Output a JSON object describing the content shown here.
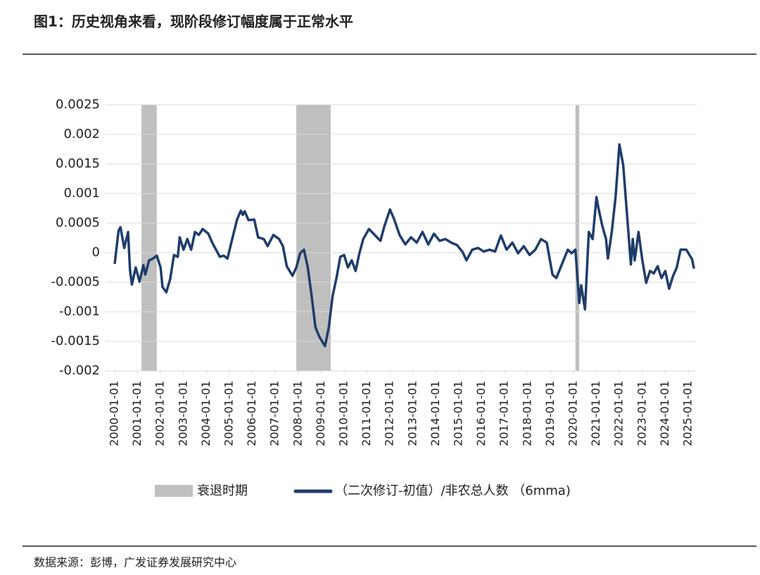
{
  "chart_data": {
    "type": "line",
    "title": "图1：历史视角来看，现阶段修订幅度属于正常水平",
    "source": "数据来源：彭博，广发证券发展研究中心",
    "x": [
      "2000-01-01",
      "2000-03-01",
      "2000-04-01",
      "2000-06-01",
      "2000-08-01",
      "2000-09-01",
      "2000-10-01",
      "2000-12-01",
      "2001-02-01",
      "2001-04-01",
      "2001-05-01",
      "2001-07-01",
      "2001-09-01",
      "2001-11-01",
      "2002-01-01",
      "2002-02-01",
      "2002-04-01",
      "2002-06-01",
      "2002-08-01",
      "2002-10-01",
      "2002-11-01",
      "2003-01-01",
      "2003-03-01",
      "2003-05-01",
      "2003-07-01",
      "2003-09-01",
      "2003-11-01",
      "2004-02-01",
      "2004-04-01",
      "2004-06-01",
      "2004-08-01",
      "2004-10-01",
      "2004-12-01",
      "2005-02-01",
      "2005-05-01",
      "2005-07-01",
      "2005-08-01",
      "2005-09-01",
      "2005-11-01",
      "2006-02-01",
      "2006-04-01",
      "2006-07-01",
      "2006-09-01",
      "2006-12-01",
      "2007-03-01",
      "2007-05-01",
      "2007-07-01",
      "2007-10-01",
      "2007-12-01",
      "2008-02-01",
      "2008-04-01",
      "2008-06-01",
      "2008-08-01",
      "2008-10-01",
      "2008-12-01",
      "2009-03-01",
      "2009-05-01",
      "2009-07-01",
      "2009-09-01",
      "2009-11-01",
      "2010-01-01",
      "2010-03-01",
      "2010-05-01",
      "2010-07-01",
      "2010-09-01",
      "2010-11-01",
      "2011-02-01",
      "2011-05-01",
      "2011-08-01",
      "2011-10-01",
      "2012-01-01",
      "2012-03-01",
      "2012-06-01",
      "2012-09-01",
      "2012-12-01",
      "2013-03-01",
      "2013-06-01",
      "2013-09-01",
      "2013-12-01",
      "2014-03-01",
      "2014-06-01",
      "2014-09-01",
      "2014-12-01",
      "2015-03-01",
      "2015-05-01",
      "2015-08-01",
      "2015-11-01",
      "2016-02-01",
      "2016-05-01",
      "2016-08-01",
      "2016-11-01",
      "2017-02-01",
      "2017-05-01",
      "2017-08-01",
      "2017-11-01",
      "2018-02-01",
      "2018-05-01",
      "2018-08-01",
      "2018-11-01",
      "2019-02-01",
      "2019-04-01",
      "2019-07-01",
      "2019-10-01",
      "2019-12-01",
      "2020-02-01",
      "2020-04-01",
      "2020-05-01",
      "2020-07-01",
      "2020-09-01",
      "2020-11-01",
      "2021-01-01",
      "2021-02-01",
      "2021-04-01",
      "2021-06-01",
      "2021-07-01",
      "2021-09-01",
      "2021-11-01",
      "2022-01-01",
      "2022-03-01",
      "2022-05-01",
      "2022-07-01",
      "2022-08-01",
      "2022-09-01",
      "2022-11-01",
      "2023-01-01",
      "2023-03-01",
      "2023-05-01",
      "2023-07-01",
      "2023-09-01",
      "2023-11-01",
      "2024-01-01",
      "2024-03-01",
      "2024-05-01",
      "2024-07-01",
      "2024-09-01",
      "2024-12-01",
      "2025-03-01",
      "2025-04-01"
    ],
    "series": [
      {
        "name": "（二次修订-初值）/非农总人数 （6mma)",
        "color": "#1f3d6b",
        "values": [
          -0.00019,
          0.00037,
          0.00043,
          8e-05,
          0.00035,
          -0.00029,
          -0.00054,
          -0.00025,
          -0.00049,
          -0.00021,
          -0.00037,
          -0.00013,
          -0.0001,
          -5e-05,
          -0.00025,
          -0.00058,
          -0.00067,
          -0.00045,
          -4e-05,
          -7e-05,
          0.00026,
          5e-05,
          0.00023,
          5e-05,
          0.00035,
          0.0003,
          0.0004,
          0.00032,
          0.00017,
          5e-05,
          -7e-05,
          -5e-05,
          -0.0001,
          0.00017,
          0.00056,
          0.00071,
          0.00064,
          0.0007,
          0.00055,
          0.00056,
          0.00026,
          0.00023,
          0.00011,
          0.0003,
          0.00023,
          0.00011,
          -0.00023,
          -0.00039,
          -0.00025,
          -1e-05,
          5e-05,
          -0.00025,
          -0.00073,
          -0.00126,
          -0.00142,
          -0.00158,
          -0.00126,
          -0.00073,
          -0.00043,
          -7e-05,
          -4e-05,
          -0.00025,
          -0.00013,
          -0.00031,
          -1e-05,
          0.00023,
          0.0004,
          0.0003,
          0.0002,
          0.00044,
          0.00073,
          0.00058,
          0.0003,
          0.00014,
          0.00026,
          0.00017,
          0.00035,
          0.00014,
          0.00032,
          0.0002,
          0.00023,
          0.00017,
          0.00013,
          1e-05,
          -0.00013,
          5e-05,
          8e-05,
          2e-05,
          5e-05,
          2e-05,
          0.00029,
          5e-05,
          0.00017,
          -1e-05,
          0.00011,
          -4e-05,
          5e-05,
          0.00023,
          0.00017,
          -0.00037,
          -0.00043,
          -0.00019,
          5e-05,
          -1e-05,
          5e-05,
          -0.00085,
          -0.00055,
          -0.00096,
          0.00035,
          0.00023,
          0.00094,
          0.00076,
          0.00046,
          0.00023,
          -0.0001,
          0.00035,
          0.00094,
          0.00183,
          0.00148,
          0.00064,
          -0.0002,
          0.00023,
          -0.00013,
          0.00035,
          -0.00013,
          -0.00051,
          -0.00031,
          -0.00035,
          -0.00023,
          -0.00043,
          -0.00031,
          -0.00061,
          -0.0004,
          -0.00025,
          5e-05,
          5e-05,
          -0.00011,
          -0.00027
        ]
      }
    ],
    "recessions": {
      "name": "衰退时期",
      "color": "#bfbfbf",
      "periods": [
        [
          "2001-03-01",
          "2001-11-01"
        ],
        [
          "2007-12-01",
          "2009-06-01"
        ],
        [
          "2020-02-01",
          "2020-04-01"
        ]
      ]
    },
    "xticks": [
      "2000-01-01",
      "2001-01-01",
      "2002-01-01",
      "2003-01-01",
      "2004-01-01",
      "2005-01-01",
      "2006-01-01",
      "2007-01-01",
      "2008-01-01",
      "2009-01-01",
      "2010-01-01",
      "2011-01-01",
      "2012-01-01",
      "2013-01-01",
      "2014-01-01",
      "2015-01-01",
      "2016-01-01",
      "2017-01-01",
      "2018-01-01",
      "2019-01-01",
      "2020-01-01",
      "2021-01-01",
      "2022-01-01",
      "2023-01-01",
      "2024-01-01",
      "2025-01-01"
    ],
    "ylim": [
      -0.002,
      0.0025
    ],
    "yticks": [
      -0.002,
      -0.0015,
      -0.001,
      -0.0005,
      0,
      0.0005,
      0.001,
      0.0015,
      0.002,
      0.0025
    ],
    "grid": true
  }
}
